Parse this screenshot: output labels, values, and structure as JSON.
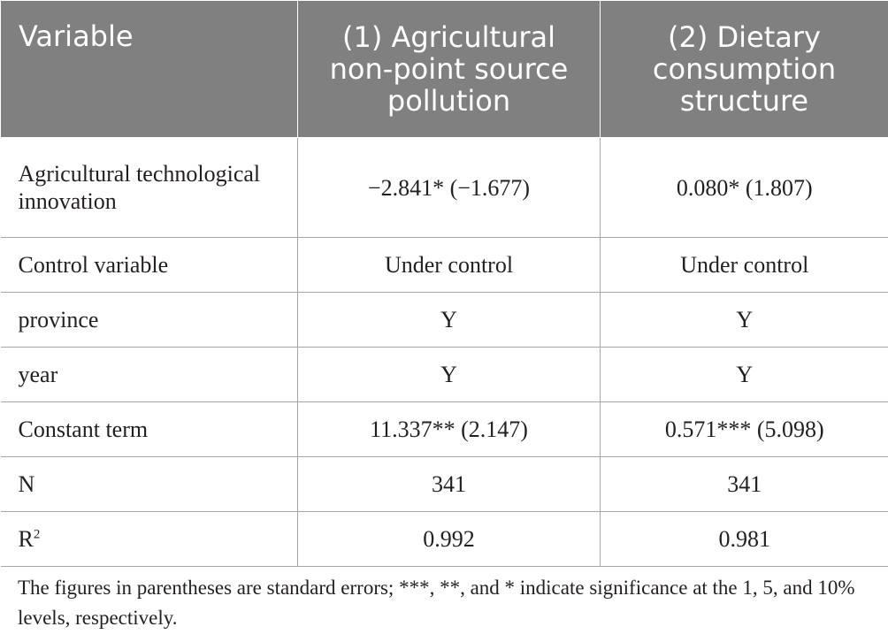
{
  "table": {
    "headers": [
      "Variable",
      "(1) Agricultural non-point source pollution",
      "(2) Dietary consumption structure"
    ],
    "rows": [
      {
        "variable": "Agricultural technological innovation",
        "col1": "−2.841* (−1.677)",
        "col2": "0.080* (1.807)"
      },
      {
        "variable": "Control variable",
        "col1": "Under control",
        "col2": "Under control"
      },
      {
        "variable": "province",
        "col1": "Y",
        "col2": "Y"
      },
      {
        "variable": "year",
        "col1": "Y",
        "col2": "Y"
      },
      {
        "variable": "Constant term",
        "col1": "11.337** (2.147)",
        "col2": "0.571*** (5.098)"
      },
      {
        "variable": "N",
        "col1": "341",
        "col2": "341"
      },
      {
        "variable": "R",
        "variable_sup": "2",
        "col1": "0.992",
        "col2": "0.981"
      }
    ]
  },
  "footnote": "The figures in parentheses are standard errors; ***, **, and * indicate significance at the 1, 5, and 10% levels, respectively."
}
